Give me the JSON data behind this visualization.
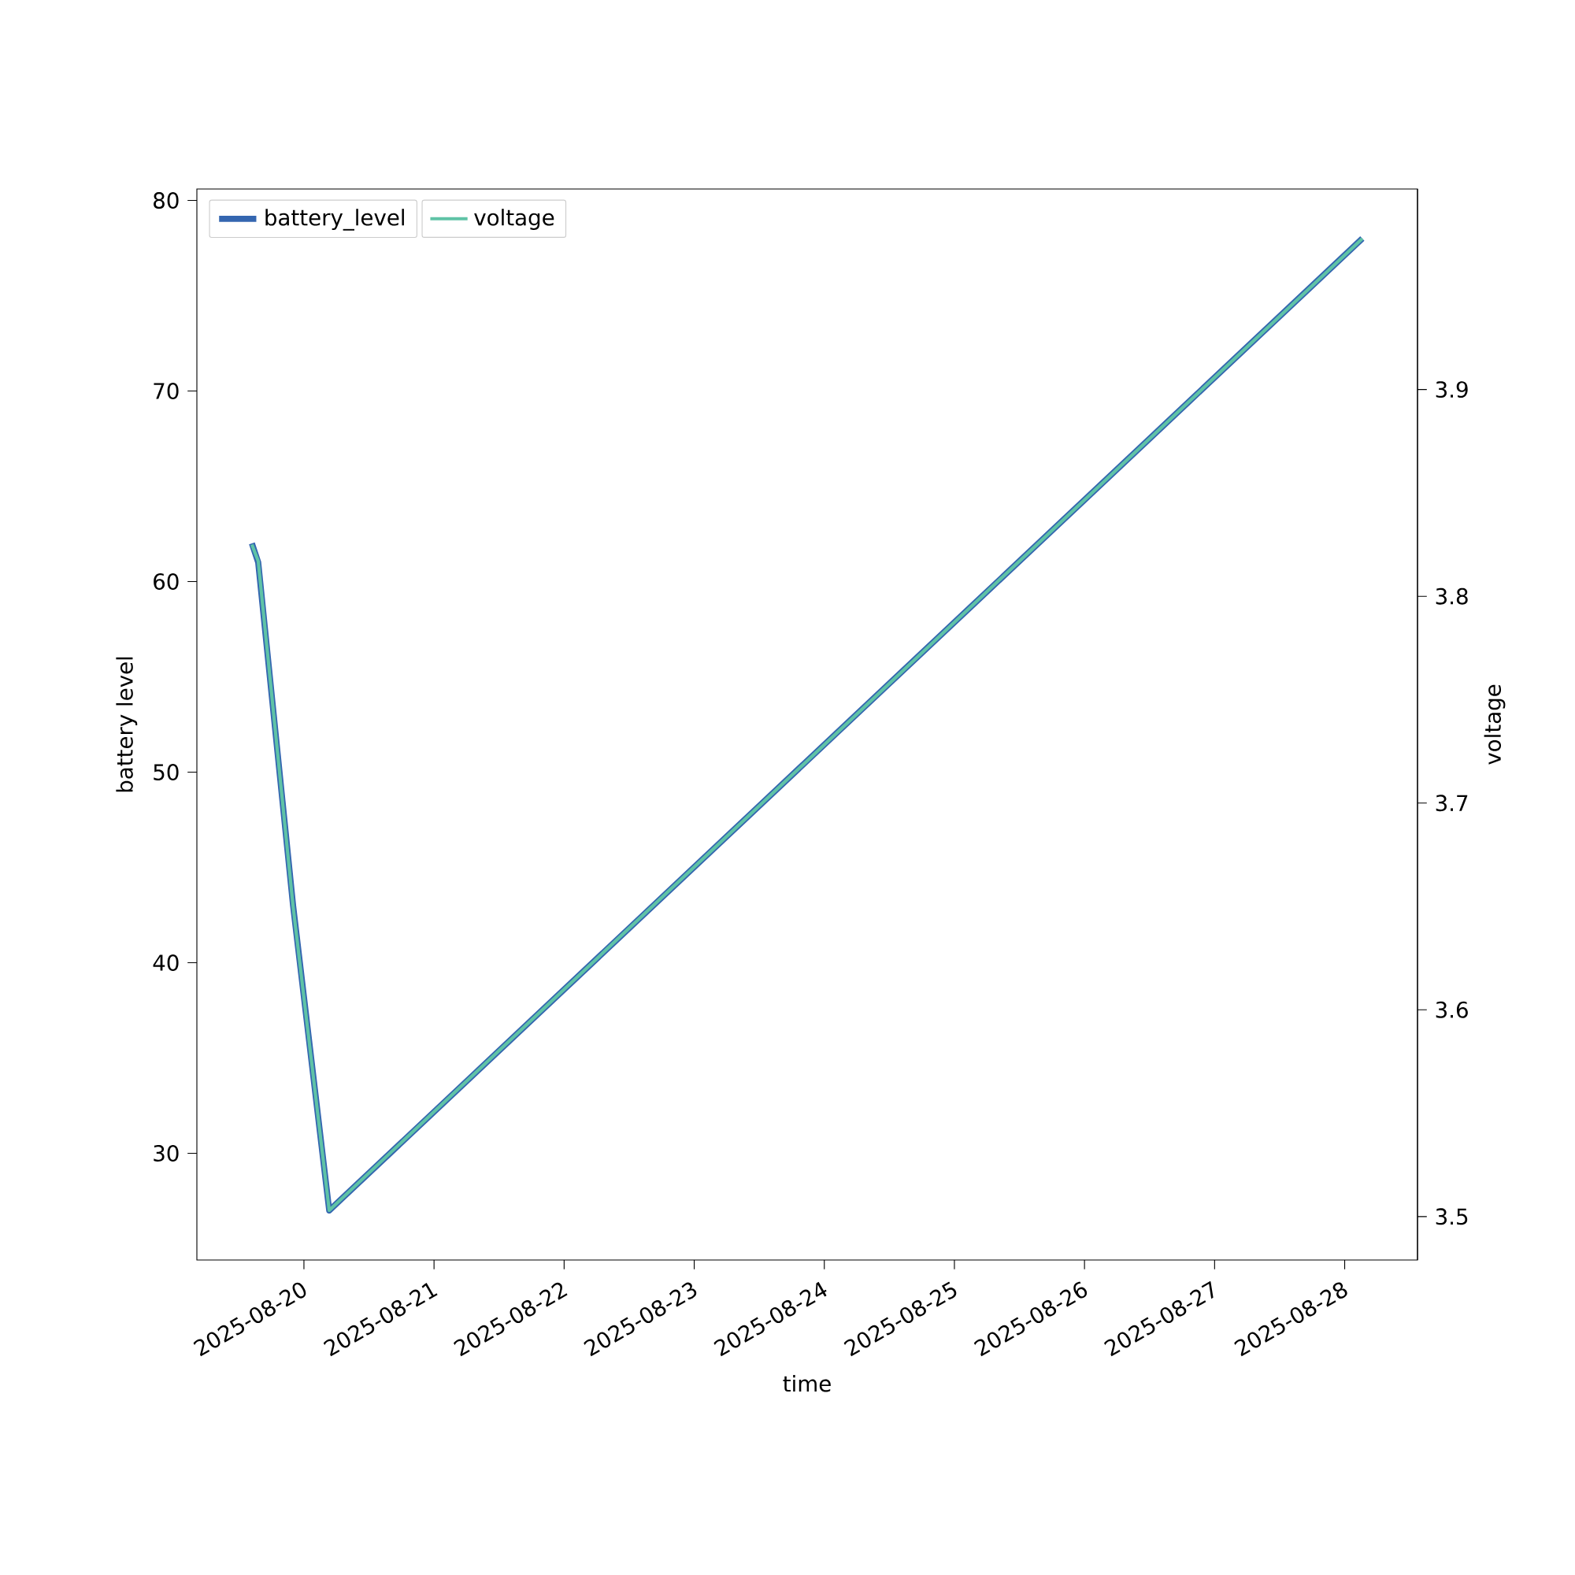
{
  "chart_data": {
    "type": "line",
    "xlabel": "time",
    "ylabel": "battery level",
    "y2label": "voltage",
    "x": [
      "2025-08-19T14:24",
      "2025-08-19T15:34",
      "2025-08-19T22:00",
      "2025-08-20T04:40",
      "2025-08-28T03:15"
    ],
    "series": [
      {
        "name": "battery_level",
        "color": "#3466b0",
        "values": [
          62,
          61,
          43,
          27,
          78
        ],
        "axis": "y"
      },
      {
        "name": "voltage",
        "color": "#5fc3a6",
        "values": [
          3.825,
          3.817,
          3.65,
          3.503,
          3.973
        ],
        "axis": "y2"
      }
    ],
    "xlim": [
      "2025-08-19T04:15",
      "2025-08-28T13:26"
    ],
    "xticks": [
      "2025-08-20",
      "2025-08-21",
      "2025-08-22",
      "2025-08-23",
      "2025-08-24",
      "2025-08-25",
      "2025-08-26",
      "2025-08-27",
      "2025-08-28"
    ],
    "ylim": [
      24.4,
      80.6
    ],
    "yticks": [
      30,
      40,
      50,
      60,
      70,
      80
    ],
    "y2lim": [
      3.479,
      3.997
    ],
    "y2ticks": [
      3.5,
      3.6,
      3.7,
      3.8,
      3.9
    ],
    "legend": "top left",
    "grid": false,
    "marker": "none",
    "line_style": "solid"
  }
}
